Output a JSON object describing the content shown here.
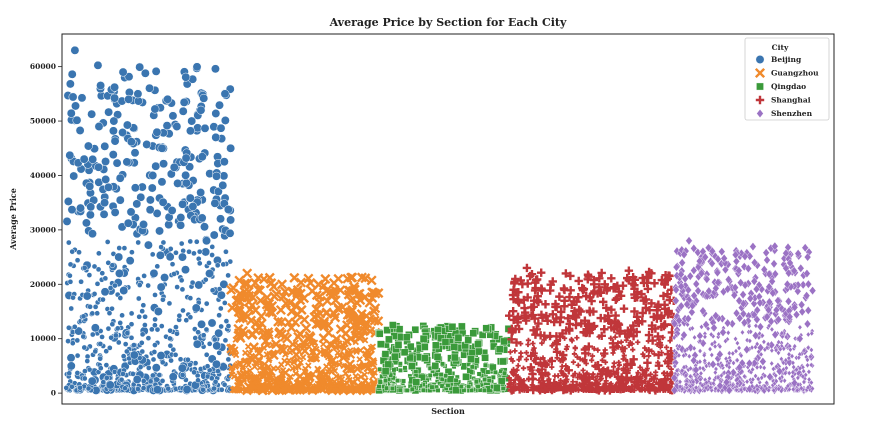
{
  "chart_data": {
    "type": "scatter",
    "title": "Average Price by Section for Each City",
    "xlabel": "Section",
    "ylabel": "Average Price",
    "ylim": [
      -2000,
      66000
    ],
    "y_ticks": [
      0,
      10000,
      20000,
      30000,
      40000,
      50000,
      60000
    ],
    "x_ticks": [],
    "grid": false,
    "legend": {
      "title": "City",
      "placement": "top-right"
    },
    "series": [
      {
        "name": "Beijing",
        "marker": "circle",
        "color": "#3a75b0",
        "x_range": [
          0,
          19
        ],
        "values_sample": [
          43000,
          43200,
          59000,
          55000,
          45000,
          49000,
          52000,
          55000,
          63000,
          49000,
          50000,
          47000,
          40000,
          38000,
          50000,
          54000,
          45000,
          54000,
          35000,
          28000,
          31000,
          34000,
          25000,
          22000,
          18000,
          15000,
          12000,
          9000,
          7000,
          5000,
          3000,
          1500
        ],
        "max_price": 63000
      },
      {
        "name": "Guangzhou",
        "marker": "x",
        "color": "#f08a2c",
        "x_range": [
          19,
          36
        ],
        "values_sample": [
          22000,
          21000,
          20000,
          18500,
          18000,
          17000,
          15000,
          13000,
          11000,
          9000,
          7000,
          5000,
          3000,
          1500,
          500
        ],
        "max_price": 22000
      },
      {
        "name": "Qingdao",
        "marker": "square",
        "color": "#3a9a3a",
        "x_range": [
          36,
          51
        ],
        "values_sample": [
          12500,
          11000,
          10000,
          9500,
          8500,
          7500,
          6500,
          5000,
          4000,
          3000,
          2000,
          1000
        ],
        "max_price": 12500
      },
      {
        "name": "Shanghai",
        "marker": "plus",
        "color": "#c0363a",
        "x_range": [
          51,
          70
        ],
        "values_sample": [
          23000,
          22500,
          22000,
          21000,
          20000,
          19000,
          17000,
          15000,
          13000,
          11000,
          9000,
          7000,
          5000,
          3500,
          2000,
          1000
        ],
        "max_price": 23000
      },
      {
        "name": "Shenzhen",
        "marker": "diamond",
        "color": "#9b72c4",
        "x_range": [
          70,
          86
        ],
        "values_sample": [
          28000,
          27000,
          26000,
          25000,
          24000,
          22000,
          20000,
          18000,
          16000,
          14000,
          12000,
          10000,
          8000,
          6000,
          4000,
          2000
        ],
        "max_price": 28000
      }
    ]
  }
}
